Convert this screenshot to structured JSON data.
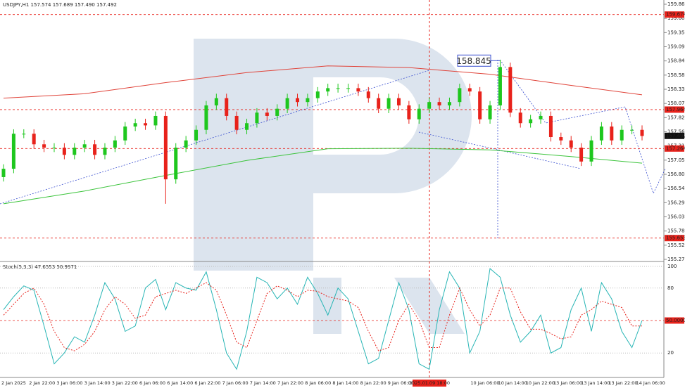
{
  "chart_data": [
    {
      "type": "candlestick",
      "title": "USDJPY,H1  157.574 157.689 157.490 157.492",
      "categories": [
        "2 Jan 2025",
        "2 Jan 22:00",
        "3 Jan 06:00",
        "3 Jan 14:00",
        "3 Jan 22:00",
        "6 Jan 06:00",
        "6 Jan 14:00",
        "6 Jan 22:00",
        "7 Jan 06:00",
        "7 Jan 14:00",
        "7 Jan 22:00",
        "8 Jan 06:00",
        "8 Jan 14:00",
        "8 Jan 22:00",
        "9 Jan 06:00",
        null,
        null,
        "10 Jan 06:00",
        "10 Jan 14:00",
        "10 Jan 22:00",
        "13 Jan 06:00",
        "13 Jan 14:00",
        "13 Jan 22:00",
        "14 Jan 06:00"
      ],
      "crosshair_time": "2025.01.09 18:00",
      "ylim": [
        155.27,
        159.86
      ],
      "yticks": [
        {
          "value": 159.86,
          "label": "159.860"
        },
        159.605,
        {
          "value": 159.35,
          "label": "159.350"
        },
        159.095,
        {
          "value": 158.84,
          "label": "158.840"
        },
        158.585,
        {
          "value": 158.33,
          "label": "158.330"
        },
        158.075,
        {
          "value": 157.82,
          "label": "157.820"
        },
        157.565,
        {
          "value": 157.31,
          "label": "157.310"
        },
        157.055,
        {
          "value": 156.8,
          "label": "156.800"
        },
        156.545,
        {
          "value": 156.29,
          "label": "156.290"
        },
        156.035,
        {
          "value": 155.78,
          "label": "155.780"
        },
        155.525,
        {
          "value": 155.27,
          "label": "155.270"
        }
      ],
      "series": [
        {
          "up_color": "#1ec71e",
          "down_color": "#e8221b",
          "open": [
            156.75,
            156.9,
            157.53,
            157.53,
            157.34,
            157.28,
            157.28,
            157.15,
            157.28,
            157.34,
            157.15,
            157.28,
            157.41,
            157.66,
            157.72,
            157.68,
            157.85,
            156.71,
            157.28,
            157.41,
            157.6,
            158.04,
            158.17,
            157.85,
            157.6,
            157.72,
            157.91,
            157.85,
            157.98,
            158.17,
            158.1,
            158.17,
            158.29,
            158.35,
            158.35,
            158.35,
            158.29,
            158.17,
            157.98,
            158.17,
            158.04,
            157.79,
            157.98,
            158.1,
            158.04,
            158.1,
            158.35,
            158.29,
            157.79,
            158.04,
            158.73,
            157.91,
            157.72,
            157.79,
            157.85,
            157.47,
            157.41,
            157.28,
            157.03,
            157.41,
            157.66,
            157.41,
            157.6,
            157.6
          ],
          "high": [
            156.98,
            157.61,
            157.61,
            157.61,
            157.42,
            157.36,
            157.36,
            157.36,
            157.42,
            157.42,
            157.36,
            157.49,
            157.74,
            157.8,
            157.8,
            157.93,
            157.93,
            157.36,
            157.49,
            157.68,
            158.12,
            158.25,
            158.25,
            157.93,
            157.8,
            157.99,
            157.99,
            158.06,
            158.25,
            158.25,
            158.25,
            158.37,
            158.43,
            158.43,
            158.43,
            158.43,
            158.37,
            158.25,
            158.25,
            158.25,
            158.12,
            158.06,
            158.18,
            158.18,
            158.18,
            158.43,
            158.43,
            158.37,
            158.12,
            158.86,
            158.81,
            157.99,
            157.87,
            157.93,
            157.93,
            157.55,
            157.49,
            157.36,
            157.49,
            157.74,
            157.74,
            157.68,
            157.68,
            157.68
          ],
          "low": [
            156.67,
            156.82,
            157.45,
            157.26,
            157.2,
            157.2,
            157.07,
            157.07,
            157.2,
            157.07,
            157.07,
            157.2,
            157.33,
            157.58,
            157.6,
            157.6,
            156.27,
            156.63,
            157.2,
            157.33,
            157.52,
            157.96,
            157.77,
            157.52,
            157.52,
            157.64,
            157.77,
            157.77,
            157.9,
            158.02,
            158.02,
            158.09,
            158.21,
            158.27,
            158.27,
            158.21,
            158.09,
            157.9,
            157.9,
            157.96,
            157.71,
            157.71,
            157.9,
            157.96,
            157.96,
            158.02,
            158.21,
            157.71,
            157.71,
            157.96,
            157.83,
            157.64,
            157.64,
            157.71,
            157.39,
            157.33,
            157.2,
            156.95,
            156.95,
            157.33,
            157.33,
            157.33,
            157.52,
            157.41
          ],
          "close": [
            156.9,
            157.53,
            157.53,
            157.34,
            157.28,
            157.28,
            157.15,
            157.28,
            157.34,
            157.15,
            157.28,
            157.41,
            157.66,
            157.72,
            157.68,
            157.85,
            156.71,
            157.28,
            157.41,
            157.6,
            158.04,
            158.17,
            157.85,
            157.6,
            157.72,
            157.91,
            157.85,
            157.98,
            158.17,
            158.1,
            158.17,
            158.29,
            158.35,
            158.35,
            158.35,
            158.29,
            158.17,
            157.98,
            158.17,
            158.04,
            157.79,
            157.98,
            158.1,
            158.04,
            158.1,
            158.35,
            158.29,
            157.79,
            158.04,
            158.73,
            157.91,
            157.72,
            157.79,
            157.85,
            157.47,
            157.41,
            157.28,
            157.03,
            157.41,
            157.66,
            157.41,
            157.6,
            157.6,
            157.49
          ]
        }
      ],
      "moving_averages": [
        {
          "color": "#e0443a",
          "x": [
            0,
            8,
            16,
            24,
            32,
            40,
            48,
            56,
            63
          ],
          "values": [
            158.17,
            158.25,
            158.45,
            158.63,
            158.75,
            158.72,
            158.6,
            158.4,
            158.23
          ]
        },
        {
          "color": "#3cc43c",
          "x": [
            0,
            8,
            16,
            24,
            32,
            40,
            48,
            56,
            63
          ],
          "values": [
            156.27,
            156.5,
            156.78,
            157.05,
            157.26,
            157.27,
            157.24,
            157.12,
            157.0
          ]
        }
      ],
      "price_levels": [
        {
          "value": 159.674,
          "color": "#e8221b"
        },
        {
          "value": 157.964,
          "color": "#e8221b"
        },
        {
          "value": 157.264,
          "color": "#e8221b"
        },
        {
          "value": 155.653,
          "color": "#e8221b"
        }
      ],
      "current_price": 157.492,
      "annotation": 158.845
    },
    {
      "type": "line",
      "title": "Stoch(5,3,3) 47.6553 50.9971",
      "ylim": [
        0,
        100
      ],
      "yticks": [
        20,
        80,
        100
      ],
      "level": {
        "value": 50,
        "label": "50.0000",
        "color": "#e8221b"
      },
      "series": [
        {
          "color": "#27b5b5",
          "values": [
            60,
            72,
            82,
            78,
            45,
            10,
            20,
            35,
            30,
            55,
            85,
            70,
            40,
            45,
            80,
            88,
            60,
            85,
            80,
            78,
            95,
            60,
            20,
            5,
            40,
            90,
            85,
            70,
            80,
            65,
            90,
            75,
            55,
            80,
            70,
            40,
            10,
            15,
            50,
            85,
            60,
            10,
            5,
            60,
            95,
            80,
            20,
            40,
            98,
            90,
            55,
            30,
            40,
            55,
            20,
            25,
            60,
            80,
            40,
            85,
            70,
            40,
            25,
            50
          ]
        },
        {
          "color": "#e8221b",
          "dashed": true,
          "values": [
            55,
            65,
            75,
            80,
            65,
            40,
            25,
            22,
            28,
            40,
            60,
            72,
            65,
            52,
            55,
            72,
            75,
            78,
            75,
            80,
            85,
            78,
            55,
            30,
            25,
            50,
            75,
            82,
            78,
            72,
            78,
            77,
            72,
            70,
            68,
            62,
            40,
            22,
            25,
            50,
            65,
            50,
            25,
            25,
            55,
            80,
            60,
            45,
            55,
            80,
            80,
            58,
            42,
            42,
            38,
            33,
            35,
            55,
            60,
            68,
            65,
            62,
            45,
            45
          ]
        }
      ]
    }
  ]
}
